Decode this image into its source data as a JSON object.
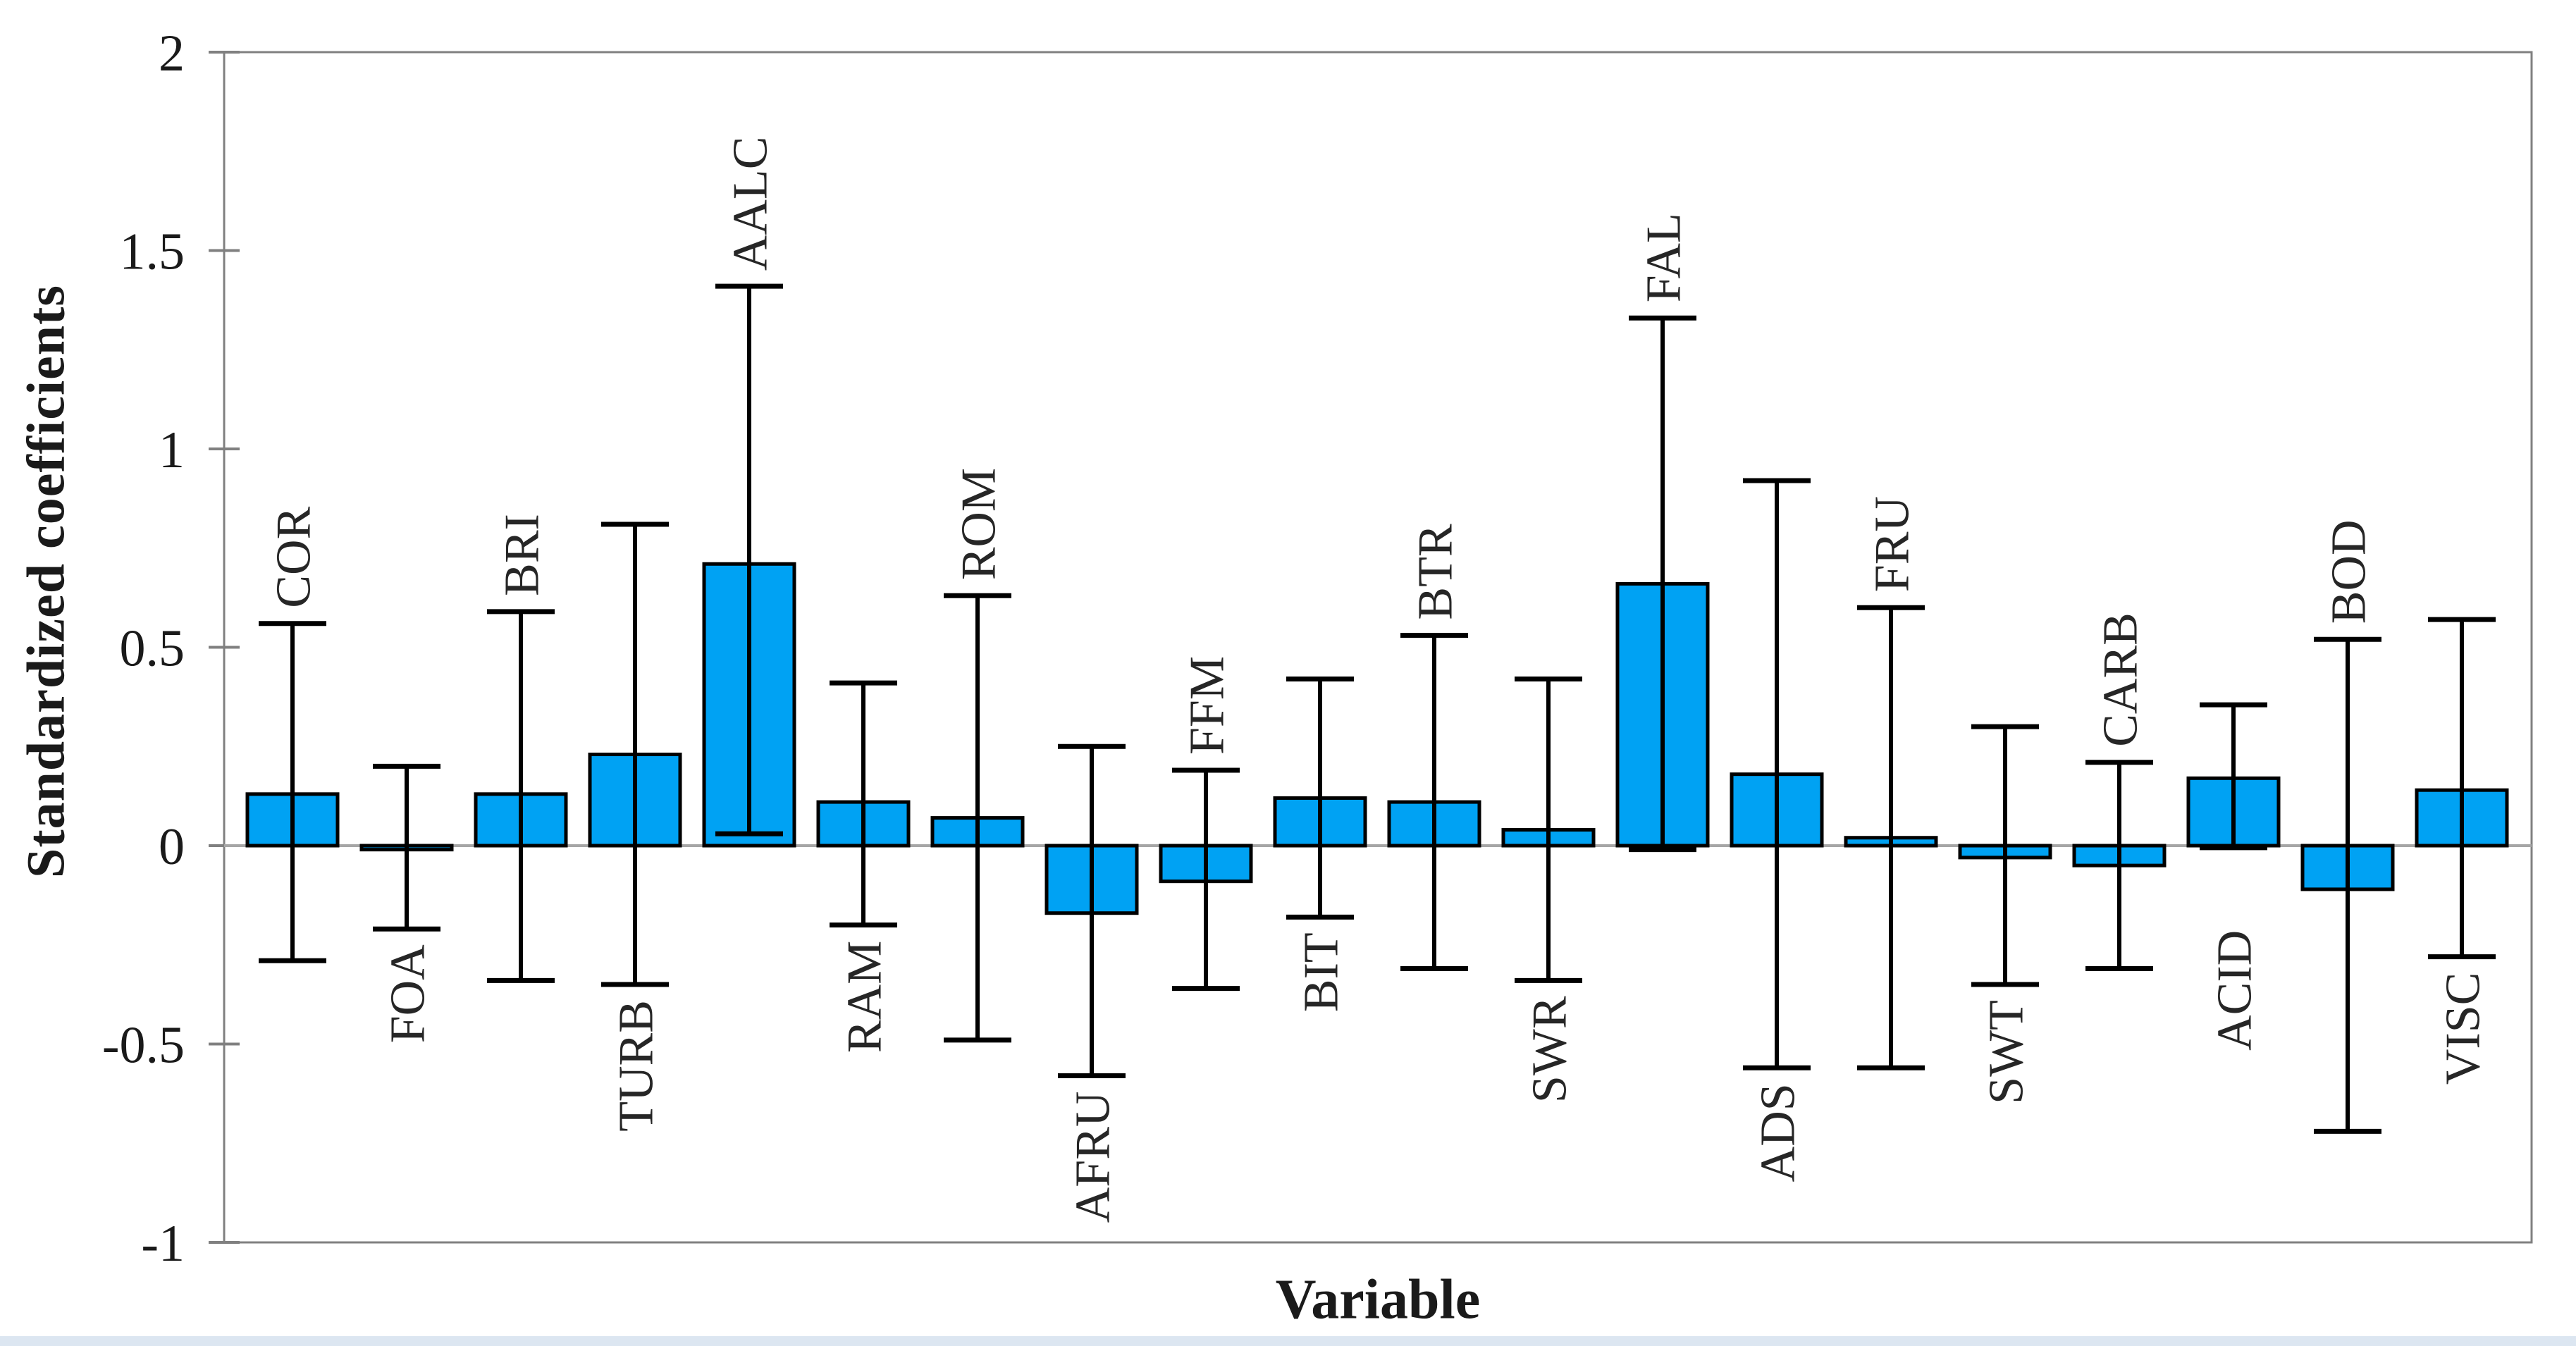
{
  "chart_data": {
    "type": "bar",
    "title": "",
    "ylabel": "Standardized coefficients",
    "xlabel": "Variable",
    "ylim": [
      -1,
      2
    ],
    "grid": false,
    "legend": false,
    "yticks": [
      {
        "value": 2,
        "label": "2"
      },
      {
        "value": 1.5,
        "label": "1.5"
      },
      {
        "value": 1,
        "label": "1"
      },
      {
        "value": 0.5,
        "label": "0.5"
      },
      {
        "value": 0,
        "label": "0"
      },
      {
        "value": -0.5,
        "label": "-0.5"
      },
      {
        "value": -1,
        "label": "-1"
      }
    ],
    "bars": [
      {
        "label": "COR",
        "value": 0.13,
        "ci_low": -0.29,
        "ci_high": 0.56,
        "label_side": "above",
        "label_offset": 0
      },
      {
        "label": "FOA",
        "value": -0.01,
        "ci_low": -0.21,
        "ci_high": 0.2,
        "label_side": "below",
        "label_offset": 0
      },
      {
        "label": "BRI",
        "value": 0.13,
        "ci_low": -0.34,
        "ci_high": 0.59,
        "label_side": "above",
        "label_offset": 0
      },
      {
        "label": "TURB",
        "value": 0.23,
        "ci_low": -0.35,
        "ci_high": 0.81,
        "label_side": "below",
        "label_offset": 0
      },
      {
        "label": "AALC",
        "value": 0.71,
        "ci_low": 0.03,
        "ci_high": 1.41,
        "label_side": "above",
        "label_offset": 0
      },
      {
        "label": "RAM",
        "value": 0.11,
        "ci_low": -0.2,
        "ci_high": 0.41,
        "label_side": "below",
        "label_offset": 0
      },
      {
        "label": "ROM",
        "value": 0.07,
        "ci_low": -0.49,
        "ci_high": 0.63,
        "label_side": "above",
        "label_offset": 0
      },
      {
        "label": "AFRU",
        "value": -0.17,
        "ci_low": -0.58,
        "ci_high": 0.25,
        "label_side": "below",
        "label_offset": 0
      },
      {
        "label": "FFM",
        "value": -0.09,
        "ci_low": -0.36,
        "ci_high": 0.19,
        "label_side": "above",
        "label_offset": 0
      },
      {
        "label": "BIT",
        "value": 0.12,
        "ci_low": -0.18,
        "ci_high": 0.42,
        "label_side": "below",
        "label_offset": 0
      },
      {
        "label": "BTR",
        "value": 0.11,
        "ci_low": -0.31,
        "ci_high": 0.53,
        "label_side": "above",
        "label_offset": 0
      },
      {
        "label": "SWR",
        "value": 0.04,
        "ci_low": -0.34,
        "ci_high": 0.42,
        "label_side": "below",
        "label_offset": 0
      },
      {
        "label": "FAL",
        "value": 0.66,
        "ci_low": -0.01,
        "ci_high": 1.33,
        "label_side": "above",
        "label_offset": 0
      },
      {
        "label": "ADS",
        "value": 0.18,
        "ci_low": -0.56,
        "ci_high": 0.92,
        "label_side": "below",
        "label_offset": 0
      },
      {
        "label": "FRU",
        "value": 0.02,
        "ci_low": -0.56,
        "ci_high": 0.6,
        "label_side": "above",
        "label_offset": 0
      },
      {
        "label": "SWT",
        "value": -0.03,
        "ci_low": -0.35,
        "ci_high": 0.3,
        "label_side": "below",
        "label_offset": 0
      },
      {
        "label": "CARB",
        "value": -0.05,
        "ci_low": -0.31,
        "ci_high": 0.21,
        "label_side": "above",
        "label_offset": 0
      },
      {
        "label": "ACID",
        "value": 0.17,
        "ci_low": -0.005,
        "ci_high": 0.355,
        "label_side": "below",
        "label_offset": 95
      },
      {
        "label": "BOD",
        "value": -0.11,
        "ci_low": -0.72,
        "ci_high": 0.52,
        "label_side": "above",
        "label_offset": 0
      },
      {
        "label": "VISC",
        "value": 0.14,
        "ci_low": -0.28,
        "ci_high": 0.57,
        "label_side": "below",
        "label_offset": 0
      }
    ],
    "colors": {
      "bar_fill": "#00a2f3",
      "bar_stroke": "#000000",
      "error_bar": "#000000",
      "axis": "#808080",
      "zero_line": "#a6a6a6",
      "tick_text": "#1a1a1a",
      "bar_label_text": "#262626",
      "bottom_strip": "#dce6f1"
    }
  }
}
